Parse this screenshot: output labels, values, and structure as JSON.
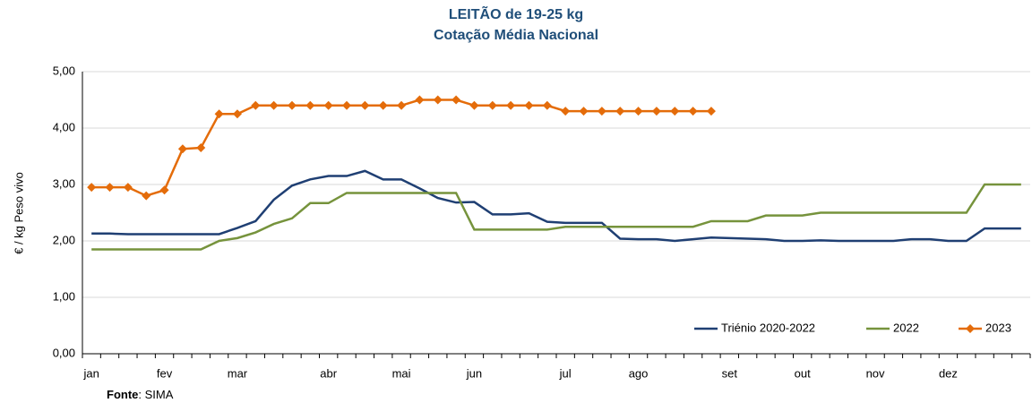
{
  "chart_data": {
    "type": "line",
    "title": "LEITÃO de 19-25 kg",
    "subtitle": "Cotação Média Nacional",
    "y_label": "€ / kg Peso vivo",
    "source": {
      "label": "Fonte",
      "text": ": SIMA"
    },
    "categories": [
      "jan",
      null,
      null,
      null,
      "fev",
      null,
      null,
      null,
      "mar",
      null,
      null,
      null,
      null,
      "abr",
      null,
      null,
      null,
      "mai",
      null,
      null,
      null,
      "jun",
      null,
      null,
      null,
      null,
      "jul",
      null,
      null,
      null,
      "ago",
      null,
      null,
      null,
      null,
      "set",
      null,
      null,
      null,
      "out",
      null,
      null,
      null,
      "nov",
      null,
      null,
      null,
      "dez",
      null,
      null,
      null,
      null
    ],
    "ylim": [
      0,
      5
    ],
    "yticks": [
      {
        "value": 0,
        "label": "0,00"
      },
      {
        "value": 1,
        "label": "1,00"
      },
      {
        "value": 2,
        "label": "2,00"
      },
      {
        "value": 3,
        "label": "3,00"
      },
      {
        "value": 4,
        "label": "4,00"
      },
      {
        "value": 5,
        "label": "5,00"
      }
    ],
    "grid": true,
    "legend": "bottom-right",
    "series": [
      {
        "name": "Triénio 2020-2022",
        "color": "#1f3f73",
        "marker": false,
        "values": [
          2.13,
          2.13,
          2.12,
          2.12,
          2.12,
          2.12,
          2.12,
          2.12,
          2.23,
          2.35,
          2.73,
          2.98,
          3.09,
          3.15,
          3.15,
          3.24,
          3.09,
          3.09,
          2.93,
          2.76,
          2.68,
          2.69,
          2.47,
          2.47,
          2.49,
          2.34,
          2.32,
          2.32,
          2.32,
          2.04,
          2.03,
          2.03,
          2.0,
          2.03,
          2.06,
          2.05,
          2.04,
          2.03,
          2.0,
          2.0,
          2.01,
          2.0,
          2.0,
          2.0,
          2.0,
          2.03,
          2.03,
          2.0,
          2.0,
          2.22,
          2.22,
          2.22
        ]
      },
      {
        "name": "2022",
        "color": "#76933c",
        "marker": false,
        "values": [
          1.85,
          1.85,
          1.85,
          1.85,
          1.85,
          1.85,
          1.85,
          2.0,
          2.05,
          2.15,
          2.3,
          2.4,
          2.67,
          2.67,
          2.85,
          2.85,
          2.85,
          2.85,
          2.85,
          2.85,
          2.85,
          2.2,
          2.2,
          2.2,
          2.2,
          2.2,
          2.25,
          2.25,
          2.25,
          2.25,
          2.25,
          2.25,
          2.25,
          2.25,
          2.35,
          2.35,
          2.35,
          2.45,
          2.45,
          2.45,
          2.5,
          2.5,
          2.5,
          2.5,
          2.5,
          2.5,
          2.5,
          2.5,
          2.5,
          3.0,
          3.0,
          3.0
        ]
      },
      {
        "name": "2023",
        "color": "#e46c0a",
        "marker": true,
        "values": [
          2.95,
          2.95,
          2.95,
          2.8,
          2.9,
          3.63,
          3.65,
          4.25,
          4.25,
          4.4,
          4.4,
          4.4,
          4.4,
          4.4,
          4.4,
          4.4,
          4.4,
          4.4,
          4.5,
          4.5,
          4.5,
          4.4,
          4.4,
          4.4,
          4.4,
          4.4,
          4.3,
          4.3,
          4.3,
          4.3,
          4.3,
          4.3,
          4.3,
          4.3,
          4.3,
          null,
          null,
          null,
          null,
          null,
          null,
          null,
          null,
          null,
          null,
          null,
          null,
          null,
          null,
          null,
          null,
          null
        ]
      }
    ]
  }
}
